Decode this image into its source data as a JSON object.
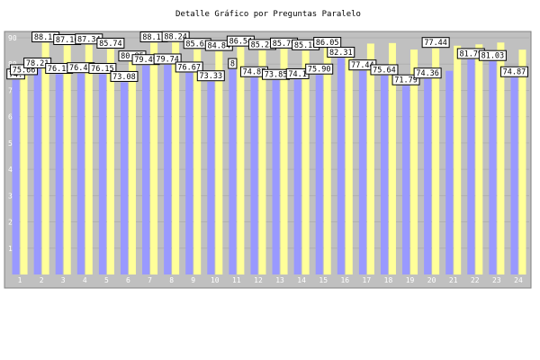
{
  "chart_data": {
    "type": "bar",
    "title": "Detalle Gráfico por Preguntas Paralelo",
    "xlabel": "",
    "ylabel": "",
    "ylim": [
      0,
      90
    ],
    "yticks": [
      "10",
      "20",
      "30",
      "40",
      "50",
      "60",
      "70",
      "80",
      "90"
    ],
    "categories": [
      "1",
      "2",
      "3",
      "4",
      "5",
      "6",
      "7",
      "8",
      "9",
      "10",
      "11",
      "12",
      "13",
      "14",
      "15",
      "16",
      "17",
      "18",
      "19",
      "20",
      "21",
      "22",
      "23",
      "24"
    ],
    "grid": true,
    "series": [
      {
        "color": "#9999ff",
        "values": [
          74.0,
          78.21,
          76.15,
          76.41,
          76.15,
          73.08,
          79.49,
          79.74,
          76.67,
          73.33,
          78.0,
          74.87,
          73.85,
          74.1,
          75.9,
          82.31,
          77.44,
          75.64,
          71.79,
          74.36,
          77.44,
          81.79,
          81.03,
          74.87
        ]
      },
      {
        "color": "#ffff99",
        "values": [
          75.66,
          88.11,
          87.1,
          87.34,
          85.74,
          80.85,
          88.11,
          88.24,
          85.63,
          84.84,
          86.54,
          85.23,
          85.79,
          85.1,
          86.05,
          86.5,
          87.8,
          88.0,
          85.52,
          86.0,
          87.0,
          87.5,
          88.2,
          85.49
        ]
      }
    ],
    "visible_labels": [
      {
        "series": 0,
        "index": 0,
        "text": "74."
      },
      {
        "series": 1,
        "index": 0,
        "text": "75.66"
      },
      {
        "series": 0,
        "index": 1,
        "text": "78.21"
      },
      {
        "series": 1,
        "index": 1,
        "text": "88.11"
      },
      {
        "series": 0,
        "index": 2,
        "text": "76.15"
      },
      {
        "series": 1,
        "index": 2,
        "text": "87.10"
      },
      {
        "series": 0,
        "index": 3,
        "text": "76.41"
      },
      {
        "series": 1,
        "index": 3,
        "text": "87.34"
      },
      {
        "series": 0,
        "index": 4,
        "text": "76.15"
      },
      {
        "series": 1,
        "index": 4,
        "text": "85.74"
      },
      {
        "series": 0,
        "index": 5,
        "text": "73.08"
      },
      {
        "series": 1,
        "index": 5,
        "text": "80.85"
      },
      {
        "series": 0,
        "index": 6,
        "text": "79.49"
      },
      {
        "series": 1,
        "index": 6,
        "text": "88.11"
      },
      {
        "series": 0,
        "index": 7,
        "text": "79.74"
      },
      {
        "series": 1,
        "index": 7,
        "text": "88.24"
      },
      {
        "series": 0,
        "index": 8,
        "text": "76.67"
      },
      {
        "series": 1,
        "index": 8,
        "text": "85.63"
      },
      {
        "series": 0,
        "index": 9,
        "text": "73.33"
      },
      {
        "series": 1,
        "index": 9,
        "text": "84.84"
      },
      {
        "series": 0,
        "index": 10,
        "text": "8"
      },
      {
        "series": 1,
        "index": 10,
        "text": "86.54"
      },
      {
        "series": 0,
        "index": 11,
        "text": "74.87"
      },
      {
        "series": 1,
        "index": 11,
        "text": "85.23"
      },
      {
        "series": 0,
        "index": 12,
        "text": "73.85"
      },
      {
        "series": 1,
        "index": 12,
        "text": "85.79"
      },
      {
        "series": 0,
        "index": 13,
        "text": "74.1"
      },
      {
        "series": 1,
        "index": 13,
        "text": "85.10"
      },
      {
        "series": 0,
        "index": 14,
        "text": "75.90"
      },
      {
        "series": 1,
        "index": 14,
        "text": "86.05"
      },
      {
        "series": 0,
        "index": 15,
        "text": "82.31"
      },
      {
        "series": 0,
        "index": 16,
        "text": "77.44"
      },
      {
        "series": 0,
        "index": 17,
        "text": "75.64"
      },
      {
        "series": 0,
        "index": 18,
        "text": "71.79"
      },
      {
        "series": 0,
        "index": 19,
        "text": "74.36"
      },
      {
        "series": 1,
        "index": 19,
        "text": "77.44"
      },
      {
        "series": 0,
        "index": 21,
        "text": "81.79"
      },
      {
        "series": 0,
        "index": 22,
        "text": "81.03"
      },
      {
        "series": 0,
        "index": 23,
        "text": "74.87"
      }
    ]
  }
}
